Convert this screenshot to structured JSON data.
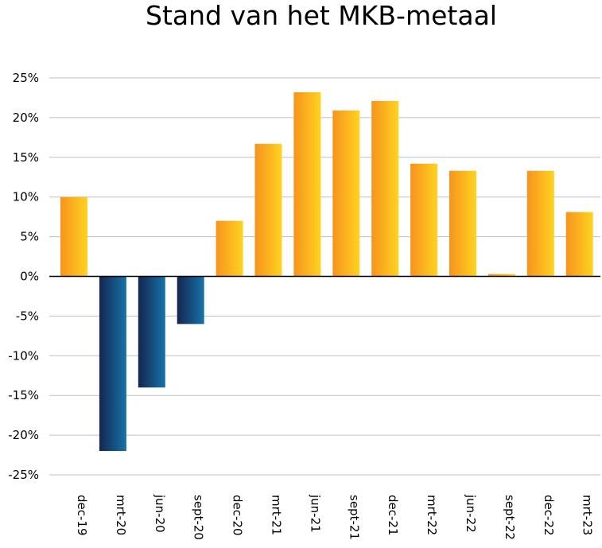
{
  "chart_data": {
    "type": "bar",
    "title": "Stand van het MKB-metaal",
    "xlabel": "",
    "ylabel": "",
    "ylim": [
      -25,
      25
    ],
    "yticks": [
      25,
      20,
      15,
      10,
      5,
      0,
      -5,
      -10,
      -15,
      -20,
      -25
    ],
    "ytick_labels": [
      "25%",
      "20%",
      "15%",
      "10%",
      "5%",
      "0%",
      "-5%",
      "-10%",
      "-15%",
      "-20%",
      "-25%"
    ],
    "grid": true,
    "categories": [
      "dec-19",
      "mrt-20",
      "jun-20",
      "sept-20",
      "dec-20",
      "mrt-21",
      "jun-21",
      "sept-21",
      "dec-21",
      "mrt-22",
      "jun-22",
      "sept-22",
      "dec-22",
      "mrt-23"
    ],
    "values": [
      10,
      -22,
      -14,
      -6,
      7,
      16.7,
      23.2,
      20.9,
      22.1,
      14.2,
      13.3,
      0.3,
      13.3,
      8.1
    ],
    "colors": {
      "positive_start": "#F7931E",
      "positive_end": "#FFD320",
      "negative_start": "#14254F",
      "negative_end": "#1673AA",
      "gridline": "#BFBFBF",
      "axis": "#000000"
    }
  }
}
